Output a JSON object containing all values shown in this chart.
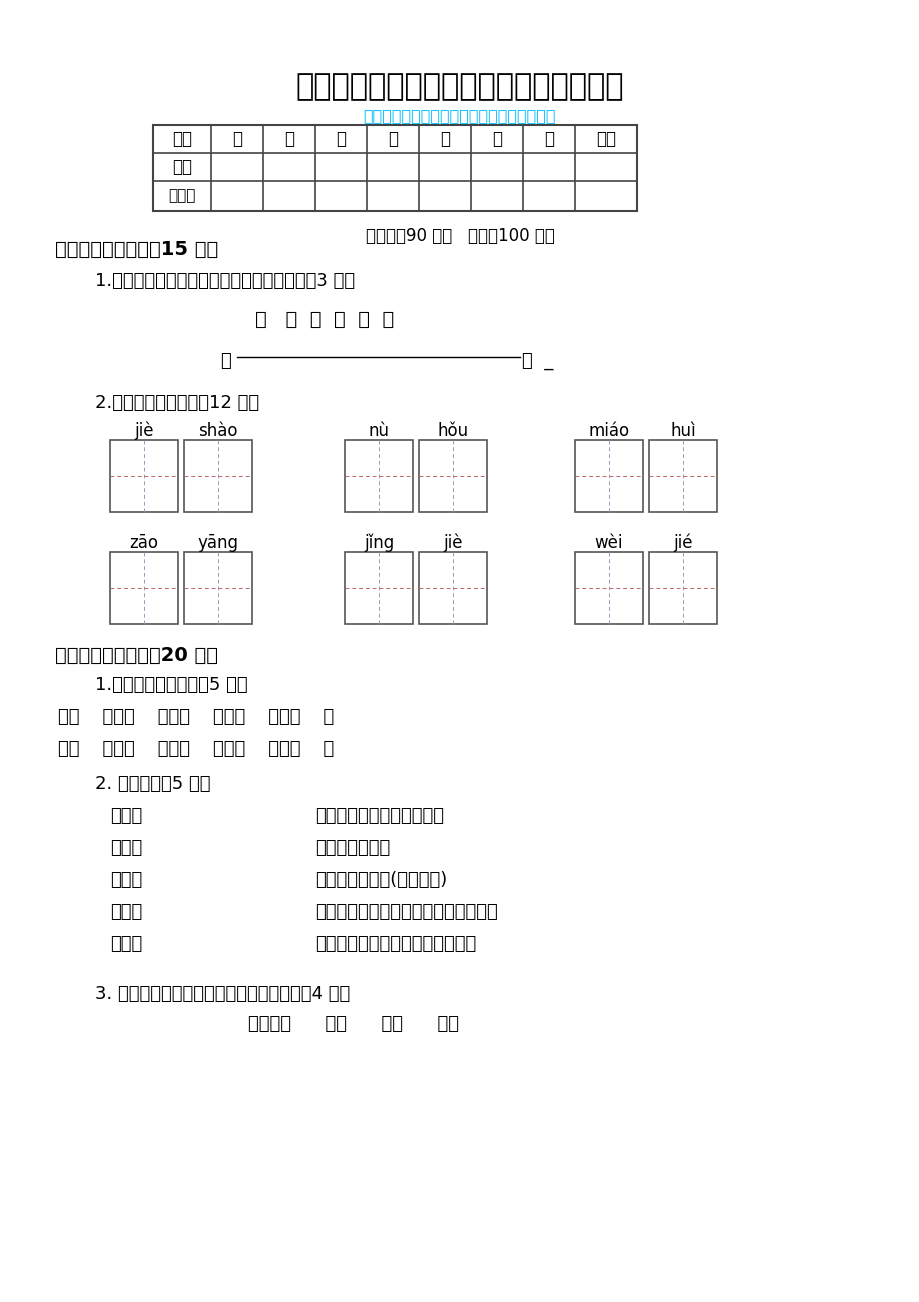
{
  "title": "最新部编版语文四年级下学期期末检测题",
  "subtitle": "（根据最新部编版语文四年级下册教材编写）",
  "subtitle_color": "#00BFFF",
  "table_headers": [
    "题序",
    "一",
    "二",
    "三",
    "四",
    "五",
    "六",
    "七",
    "总分"
  ],
  "table_row1": "得分",
  "table_row2": "评卷人",
  "time_note": "（时间：90 分钟   分值：100 分）",
  "section1_title": "一、生字积累吧。（15 分）",
  "q1_text": "1.根据音序的先后顺序，排列下面的汉字。（3 分）",
  "q1_chars": "覆   绫  捷  挽  垫  恒",
  "q2_text": "2.读拼音，写汉字。（12 分）",
  "pinyin_row1": [
    "jiè",
    "shào",
    "nù",
    "hǒu",
    "miáo",
    "huì"
  ],
  "pinyin_row2": [
    "zāo",
    "yāng",
    "jǐng",
    "jiè",
    "wèi",
    "jié"
  ],
  "section2_title": "二、词语快乐家。（20 分）",
  "q3_text": "1.比一比，再组词。（5 分）",
  "q3_row1": "仪（    ）帜（    ）垫（    ）悦（    ）充（    ）",
  "q3_row2": "议（    ）识（    ）热（    ）说（    ）允（    ）",
  "q4_text": "2. 连一连。（5 分）",
  "q4_pairs_left": [
    "纸老虎",
    "变色龙",
    "铁公鸡",
    "应声虫",
    "哈巴狗"
  ],
  "q4_pairs_right": [
    "比喻一毛不拔非常吝啬的人",
    "比喻驯顺的奴才",
    "称随声附和的人(含鄙视意)",
    "比喻外表强大凶狠而实际空虚无力的人",
    "比喻在政治上善于变化和伪装的人"
  ],
  "q5_text": "3. 对号入座（选择表示声音的词填空）。（4 分）",
  "q5_words": "咕咚咕咚      叽叽      略略      叽叽",
  "bg_color": "#FFFFFF",
  "text_color": "#000000"
}
